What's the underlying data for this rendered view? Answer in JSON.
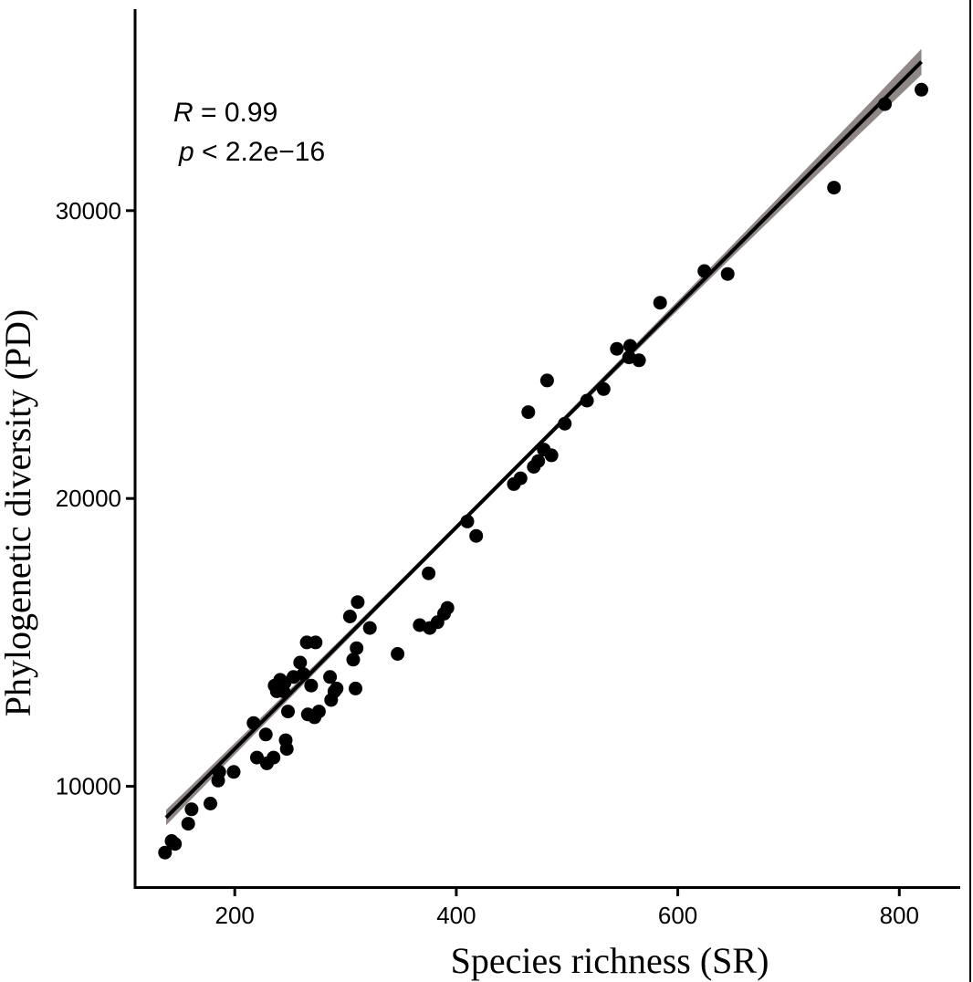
{
  "chart_data": {
    "type": "scatter",
    "xlabel": "Species richness (SR)",
    "ylabel": "Phylogenetic diversity (PD)",
    "xlim": [
      110,
      855
    ],
    "ylim": [
      6500,
      37000
    ],
    "xticks": [
      200,
      400,
      600,
      800
    ],
    "yticks": [
      10000,
      20000,
      30000
    ],
    "xtick_labels": [
      "200",
      "400",
      "600",
      "800"
    ],
    "ytick_labels": [
      "10000",
      "20000",
      "30000"
    ],
    "grid": false,
    "annotations": {
      "r_symbol": "R",
      "r_text": " = 0.99",
      "p_symbol": "p",
      "p_text": " < 2.2e−16"
    },
    "regression": {
      "x_range": [
        138,
        820
      ],
      "intercept": 3600,
      "slope": 38.5,
      "ci_halfwidth_ends": 450,
      "ci_halfwidth_center": 90,
      "ci_center_x": 420
    },
    "colors": {
      "points": "#000000",
      "line": "#000000",
      "ci_band": "#8a8181"
    },
    "points": [
      [
        137,
        7700
      ],
      [
        143,
        8100
      ],
      [
        146,
        8000
      ],
      [
        158,
        8700
      ],
      [
        161,
        9200
      ],
      [
        178,
        9400
      ],
      [
        185,
        10200
      ],
      [
        186,
        10500
      ],
      [
        199,
        10500
      ],
      [
        217,
        12200
      ],
      [
        220,
        11000
      ],
      [
        228,
        11800
      ],
      [
        229,
        10800
      ],
      [
        235,
        11000
      ],
      [
        236,
        13500
      ],
      [
        238,
        13300
      ],
      [
        241,
        13700
      ],
      [
        244,
        13300
      ],
      [
        245,
        13600
      ],
      [
        246,
        11600
      ],
      [
        247,
        11300
      ],
      [
        248,
        12600
      ],
      [
        253,
        13800
      ],
      [
        259,
        14300
      ],
      [
        262,
        13900
      ],
      [
        265,
        15000
      ],
      [
        266,
        12500
      ],
      [
        269,
        13500
      ],
      [
        272,
        12400
      ],
      [
        273,
        15000
      ],
      [
        276,
        12600
      ],
      [
        286,
        13800
      ],
      [
        287,
        13000
      ],
      [
        290,
        13300
      ],
      [
        292,
        13400
      ],
      [
        304,
        15900
      ],
      [
        307,
        14400
      ],
      [
        309,
        13400
      ],
      [
        310,
        14800
      ],
      [
        311,
        16400
      ],
      [
        322,
        15500
      ],
      [
        347,
        14600
      ],
      [
        367,
        15600
      ],
      [
        375,
        17400
      ],
      [
        376,
        15500
      ],
      [
        383,
        15700
      ],
      [
        389,
        16000
      ],
      [
        392,
        16200
      ],
      [
        410,
        19200
      ],
      [
        418,
        18700
      ],
      [
        452,
        20500
      ],
      [
        458,
        20700
      ],
      [
        465,
        23000
      ],
      [
        470,
        21100
      ],
      [
        474,
        21300
      ],
      [
        479,
        21700
      ],
      [
        482,
        24100
      ],
      [
        486,
        21500
      ],
      [
        498,
        22600
      ],
      [
        518,
        23400
      ],
      [
        533,
        23800
      ],
      [
        545,
        25200
      ],
      [
        556,
        24900
      ],
      [
        557,
        25300
      ],
      [
        565,
        24800
      ],
      [
        584,
        26800
      ],
      [
        624,
        27900
      ],
      [
        645,
        27800
      ],
      [
        741,
        30800
      ],
      [
        787,
        33700
      ],
      [
        820,
        34200
      ]
    ]
  }
}
